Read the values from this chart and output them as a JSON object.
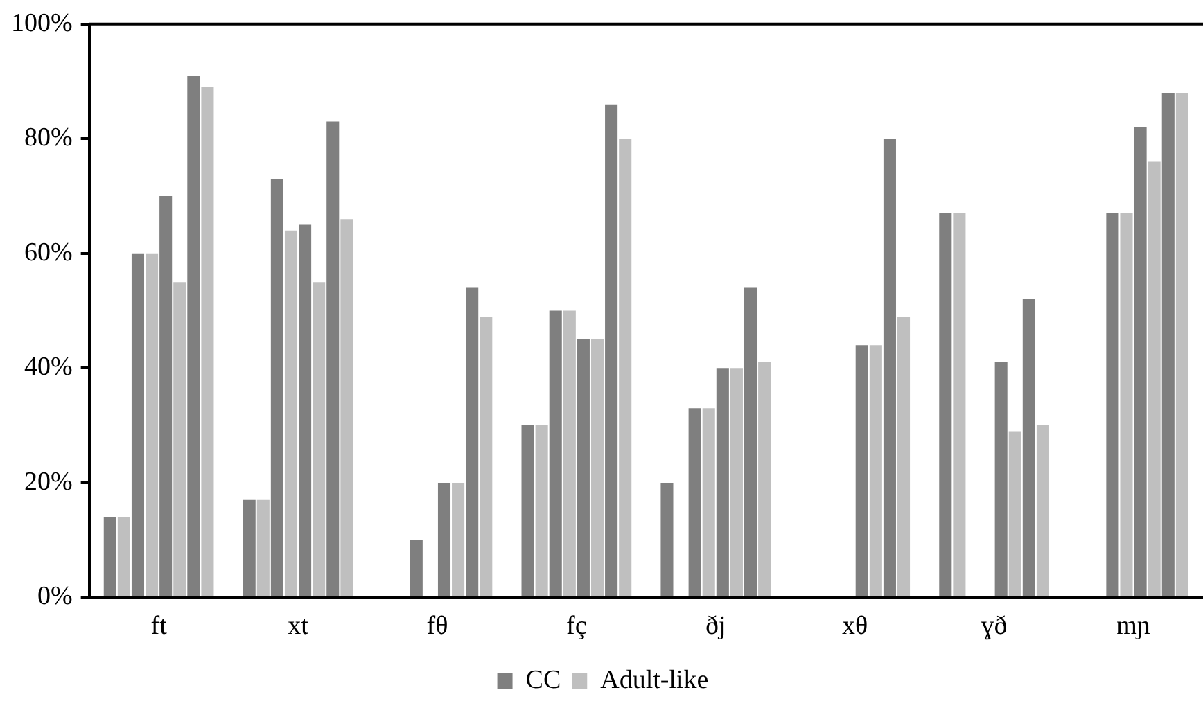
{
  "chart_data": {
    "type": "bar",
    "categories": [
      "ft",
      "xt",
      "fθ",
      "fç",
      "ðj",
      "xθ",
      "ɣð",
      "mɲ"
    ],
    "series": [
      {
        "name": "CC",
        "color": "#7f7f7f",
        "values": [
          14,
          17,
          null,
          30,
          20,
          null,
          67,
          null
        ]
      },
      {
        "name": "Adult-like",
        "color": "#bfbfbf",
        "values": [
          14,
          17,
          null,
          30,
          null,
          null,
          67,
          null
        ]
      },
      {
        "color": "#7f7f7f",
        "values": [
          60,
          73,
          10,
          50,
          33,
          null,
          null,
          67
        ]
      },
      {
        "color": "#bfbfbf",
        "values": [
          60,
          64,
          null,
          50,
          33,
          null,
          null,
          67
        ]
      },
      {
        "color": "#7f7f7f",
        "values": [
          70,
          65,
          20,
          45,
          40,
          44,
          41,
          82
        ]
      },
      {
        "color": "#bfbfbf",
        "values": [
          55,
          55,
          20,
          45,
          40,
          44,
          29,
          76
        ]
      },
      {
        "color": "#7f7f7f",
        "values": [
          91,
          83,
          54,
          86,
          54,
          80,
          52,
          88
        ]
      },
      {
        "color": "#bfbfbf",
        "values": [
          89,
          66,
          49,
          80,
          41,
          49,
          30,
          88
        ]
      }
    ],
    "ylim": [
      0,
      100
    ],
    "yticks": [
      {
        "value": 0,
        "label": "0%"
      },
      {
        "value": 20,
        "label": "20%"
      },
      {
        "value": 40,
        "label": "40%"
      },
      {
        "value": 60,
        "label": "60%"
      },
      {
        "value": 80,
        "label": "80%"
      },
      {
        "value": 100,
        "label": "100%"
      }
    ],
    "grid": false,
    "legend": "bottom"
  }
}
